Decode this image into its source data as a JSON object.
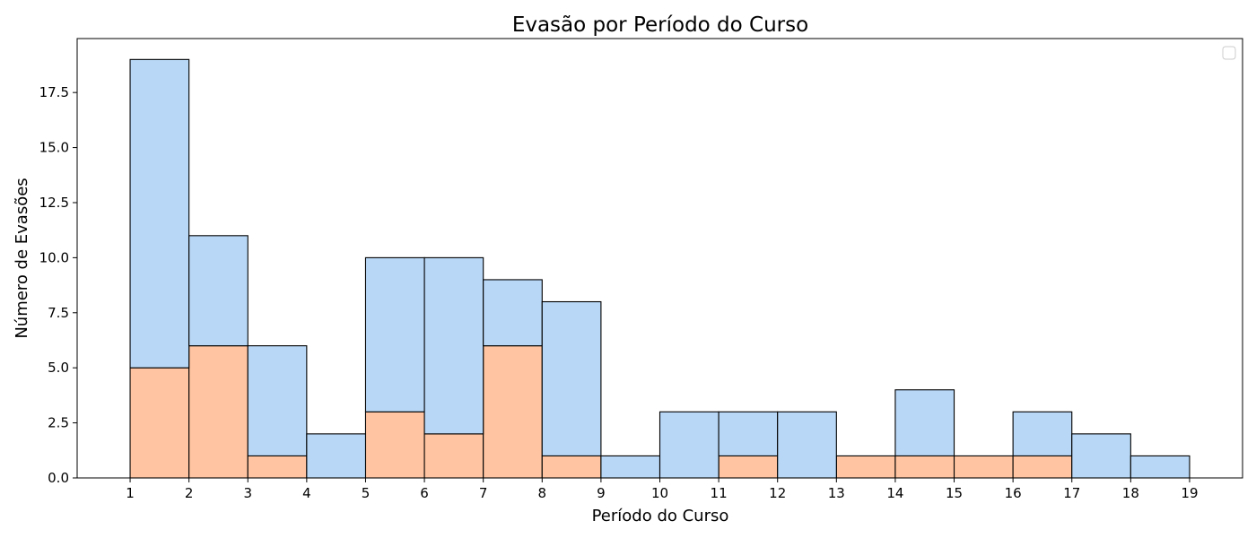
{
  "chart_data": {
    "type": "bar",
    "title": "Evasão por Período do Curso",
    "xlabel": "Período do Curso",
    "ylabel": "Número de Evasões",
    "bin_edges": [
      1,
      2,
      3,
      4,
      5,
      6,
      7,
      8,
      9,
      10,
      11,
      12,
      13,
      14,
      15,
      16,
      17,
      18,
      19
    ],
    "x_ticks": [
      1,
      2,
      3,
      4,
      5,
      6,
      7,
      8,
      9,
      10,
      11,
      12,
      13,
      14,
      15,
      16,
      17,
      18,
      19
    ],
    "y_ticks": [
      "0.0",
      "2.5",
      "5.0",
      "7.5",
      "10.0",
      "12.5",
      "15.0",
      "17.5"
    ],
    "xlim": [
      0.1,
      19.9
    ],
    "ylim": [
      0,
      19.95
    ],
    "stacked": true,
    "legend": {
      "entries": [],
      "placement": "top-right"
    },
    "grid": false,
    "series": [
      {
        "color": "#ffc4a1",
        "values": [
          5,
          6,
          1,
          0,
          3,
          2,
          6,
          1,
          0,
          0,
          1,
          0,
          1,
          1,
          1,
          1,
          0,
          0
        ]
      },
      {
        "color": "#b8d7f6",
        "values": [
          14,
          5,
          5,
          2,
          7,
          8,
          3,
          7,
          1,
          3,
          2,
          3,
          0,
          3,
          0,
          2,
          2,
          1
        ]
      }
    ]
  }
}
